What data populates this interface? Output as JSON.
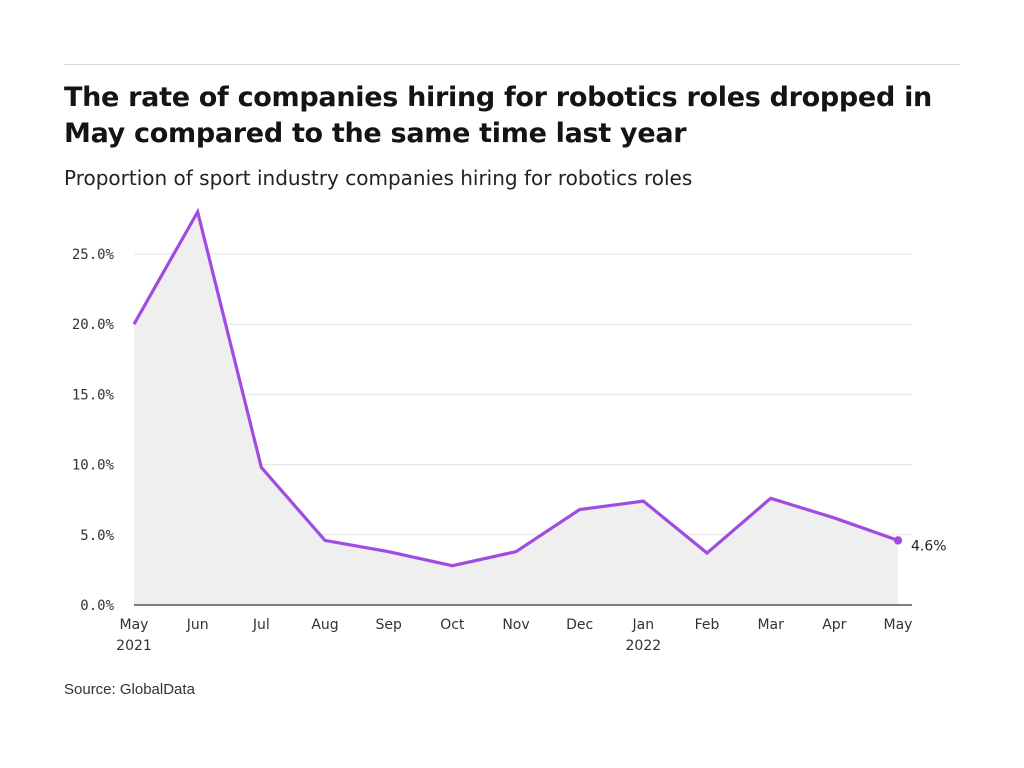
{
  "header": {
    "title": "The rate of companies hiring for robotics roles dropped in May compared to the same time last year",
    "subtitle": "Proportion of sport industry companies hiring for robotics roles"
  },
  "footer": {
    "source": "Source: GlobalData"
  },
  "colors": {
    "line": "#a04ce0",
    "area": "#efefef",
    "grid": "#e4e4e4",
    "axis": "#333333"
  },
  "chart_data": {
    "type": "area",
    "title": "The rate of companies hiring for robotics roles dropped in May compared to the same time last year",
    "subtitle": "Proportion of sport industry companies hiring for robotics roles",
    "xlabel": "",
    "ylabel": "",
    "categories": [
      "May",
      "Jun",
      "Jul",
      "Aug",
      "Sep",
      "Oct",
      "Nov",
      "Dec",
      "Jan",
      "Feb",
      "Mar",
      "Apr",
      "May"
    ],
    "year_labels": [
      "2021",
      "",
      "",
      "",
      "",
      "",
      "",
      "",
      "2022",
      "",
      "",
      "",
      ""
    ],
    "series": [
      {
        "values": [
          20.0,
          28.0,
          9.8,
          4.6,
          3.8,
          2.8,
          3.8,
          6.8,
          7.4,
          3.7,
          7.6,
          6.2,
          4.6
        ]
      }
    ],
    "ylim": [
      0,
      28
    ],
    "yticks": [
      0,
      5,
      10,
      15,
      20,
      25
    ],
    "ytick_labels": [
      "0.0%",
      "5.0%",
      "10.0%",
      "15.0%",
      "20.0%",
      "25.0%"
    ],
    "end_label": "4.6%",
    "grid": true,
    "legend": "none"
  }
}
